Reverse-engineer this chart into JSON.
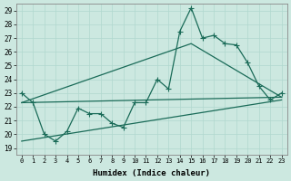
{
  "xlabel": "Humidex (Indice chaleur)",
  "xlim": [
    -0.5,
    23.5
  ],
  "ylim": [
    18.5,
    29.5
  ],
  "xticks": [
    0,
    1,
    2,
    3,
    4,
    5,
    6,
    7,
    8,
    9,
    10,
    11,
    12,
    13,
    14,
    15,
    16,
    17,
    18,
    19,
    20,
    21,
    22,
    23
  ],
  "yticks": [
    19,
    20,
    21,
    22,
    23,
    24,
    25,
    26,
    27,
    28,
    29
  ],
  "bg_color": "#cce8e0",
  "grid_color": "#b0d8ce",
  "line_color": "#1a6b58",
  "line1_x": [
    0,
    1,
    2,
    3,
    4,
    5,
    6,
    7,
    8,
    9,
    10,
    11,
    12,
    13,
    14,
    15,
    16,
    17,
    18,
    19,
    20,
    21,
    22,
    23
  ],
  "line1_y": [
    23.0,
    22.3,
    20.0,
    19.5,
    20.2,
    21.9,
    21.5,
    21.5,
    20.8,
    20.5,
    22.3,
    22.3,
    24.0,
    23.3,
    27.5,
    29.2,
    27.0,
    27.2,
    26.6,
    26.5,
    25.2,
    23.5,
    22.5,
    23.0
  ],
  "line2_x": [
    0,
    23
  ],
  "line2_y": [
    22.3,
    22.7
  ],
  "line3_x": [
    0,
    15,
    23
  ],
  "line3_y": [
    22.3,
    26.6,
    22.7
  ],
  "line4_x": [
    0,
    23
  ],
  "line4_y": [
    19.5,
    22.5
  ]
}
